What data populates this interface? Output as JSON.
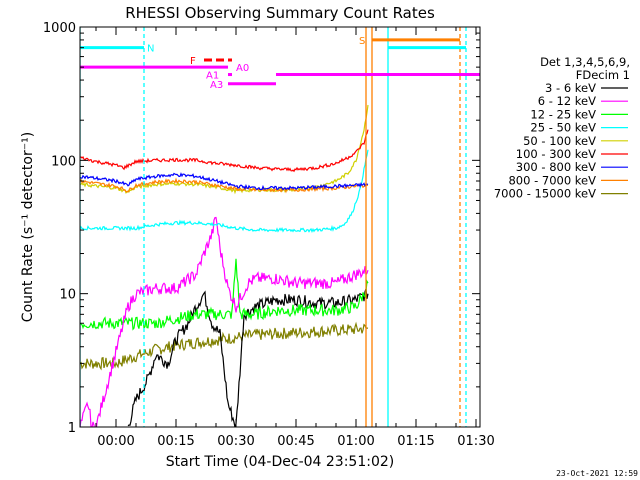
{
  "chart_data": {
    "type": "line",
    "title": "RHESSI Observing Summary Count Rates",
    "xlabel": "Start Time (04-Dec-04 23:51:02)",
    "ylabel": "Count Rate (s⁻¹ detector⁻¹)",
    "yscale": "log",
    "ylim": [
      1,
      1000
    ],
    "xlim_minutes": [
      -9,
      91
    ],
    "x_tick_labels": [
      "00:00",
      "00:15",
      "00:30",
      "00:45",
      "01:00",
      "01:15",
      "01:30"
    ],
    "x_tick_minutes": [
      0,
      15,
      30,
      45,
      60,
      75,
      90
    ],
    "y_tick_labels": [
      "1",
      "10",
      "100",
      "1000"
    ],
    "y_tick_values": [
      1,
      10,
      100,
      1000
    ],
    "legend": {
      "placement": "right",
      "header": [
        "Det 1,3,4,5,6,9,",
        "FDecim 1"
      ],
      "entries": [
        {
          "label": "3 - 6 keV",
          "color": "#000000"
        },
        {
          "label": "6 - 12 keV",
          "color": "#ff00ff"
        },
        {
          "label": "12 - 25 keV",
          "color": "#00ff00"
        },
        {
          "label": "25 - 50 keV",
          "color": "#00ffff"
        },
        {
          "label": "50 - 100 keV",
          "color": "#d0d000"
        },
        {
          "label": "100 - 300 keV",
          "color": "#ff0000"
        },
        {
          "label": "300 - 800 keV",
          "color": "#0000ff"
        },
        {
          "label": "800 - 7000 keV",
          "color": "#ff8000"
        },
        {
          "label": "7000 - 15000 keV",
          "color": "#808000"
        }
      ]
    },
    "series": [
      {
        "color": "#ff0000",
        "x": [
          -9,
          -5,
          0,
          2,
          5,
          10,
          15,
          20,
          25,
          30,
          35,
          40,
          45,
          50,
          55,
          58,
          60,
          62,
          63
        ],
        "y": [
          105,
          98,
          92,
          88,
          98,
          100,
          101,
          100,
          95,
          92,
          88,
          86,
          85,
          88,
          95,
          105,
          115,
          135,
          170
        ]
      },
      {
        "color": "#0000ff",
        "x": [
          -9,
          0,
          3,
          5,
          10,
          15,
          20,
          25,
          30,
          35,
          40,
          45,
          50,
          55,
          60,
          63
        ],
        "y": [
          76,
          70,
          65,
          72,
          76,
          78,
          76,
          70,
          64,
          62,
          62,
          62,
          63,
          64,
          65,
          66
        ]
      },
      {
        "color": "#ff8000",
        "x": [
          -9,
          0,
          3,
          5,
          10,
          15,
          20,
          25,
          30,
          35,
          40,
          45,
          50,
          55,
          60,
          63
        ],
        "y": [
          70,
          64,
          59,
          65,
          69,
          70,
          69,
          65,
          61,
          60,
          60,
          60,
          61,
          62,
          64,
          65
        ]
      },
      {
        "color": "#d0d000",
        "x": [
          -9,
          0,
          3,
          5,
          10,
          15,
          20,
          25,
          30,
          35,
          40,
          45,
          50,
          55,
          58,
          60,
          62,
          63
        ],
        "y": [
          66,
          62,
          58,
          63,
          66,
          67,
          66,
          63,
          59,
          60,
          60,
          60,
          63,
          70,
          80,
          100,
          170,
          260
        ]
      },
      {
        "color": "#00ffff",
        "x": [
          -9,
          0,
          5,
          10,
          15,
          20,
          25,
          30,
          35,
          40,
          45,
          50,
          55,
          57,
          59,
          61,
          63
        ],
        "y": [
          31,
          31,
          31,
          33,
          34,
          34,
          33,
          31,
          30,
          30,
          30,
          30,
          31,
          33,
          40,
          60,
          120
        ]
      },
      {
        "color": "#ff00ff",
        "x": [
          -9,
          -7,
          -6,
          -5,
          3,
          5,
          10,
          15,
          20,
          22,
          24,
          25,
          26,
          28,
          30,
          33,
          35,
          40,
          45,
          50,
          55,
          60,
          63
        ],
        "y": [
          1,
          1.5,
          1,
          1,
          8,
          10,
          11,
          11,
          14,
          20,
          28,
          38,
          22,
          11,
          8,
          12,
          13,
          13,
          12,
          12,
          12,
          14,
          15
        ]
      },
      {
        "color": "#00ff00",
        "x": [
          -9,
          0,
          5,
          10,
          15,
          20,
          25,
          29,
          30,
          31,
          35,
          40,
          45,
          50,
          55,
          60,
          62,
          63
        ],
        "y": [
          6,
          6,
          6,
          6,
          6.5,
          7,
          7,
          7,
          18,
          7,
          7,
          7.5,
          7.5,
          7.5,
          7.5,
          8,
          10,
          12
        ]
      },
      {
        "color": "#000000",
        "x": [
          3,
          5,
          8,
          10,
          13,
          15,
          18,
          20,
          22,
          24,
          26,
          28,
          30,
          32,
          35,
          40,
          45,
          50,
          55,
          60,
          63
        ],
        "y": [
          1,
          1.6,
          2.3,
          3.5,
          3,
          4.5,
          6,
          8,
          10,
          6,
          5,
          1.5,
          1,
          7,
          8,
          9,
          9,
          8.5,
          8.5,
          9,
          10
        ]
      },
      {
        "color": "#808000",
        "x": [
          -9,
          0,
          5,
          10,
          15,
          20,
          25,
          30,
          35,
          40,
          45,
          50,
          55,
          60,
          63
        ],
        "y": [
          3,
          3,
          3.4,
          3.8,
          4.1,
          4.3,
          4.5,
          4.7,
          4.9,
          5.0,
          5.1,
          5.2,
          5.3,
          5.4,
          5.5
        ]
      }
    ],
    "annotations": {
      "vertical_lines": [
        {
          "x": -9,
          "color": "#00ffff",
          "style": "solid"
        },
        {
          "x": 7,
          "color": "#00ffff",
          "style": "dashed"
        },
        {
          "x": 62.5,
          "color": "#ff8000",
          "style": "solid"
        },
        {
          "x": 64,
          "color": "#ff8000",
          "style": "solid"
        },
        {
          "x": 68,
          "color": "#00ffff",
          "style": "solid"
        },
        {
          "x": 86,
          "color": "#ff8000",
          "style": "dashed"
        },
        {
          "x": 87.5,
          "color": "#00ffff",
          "style": "dashed"
        }
      ],
      "flag_bars": [
        {
          "label": "N",
          "color": "#00ffff",
          "x0": -9,
          "x1": 7,
          "y": 700,
          "dashed": false
        },
        {
          "label": "",
          "color": "#00ffff",
          "x0": 68,
          "x1": 87.5,
          "y": 700,
          "dashed": false
        },
        {
          "label": "S",
          "color": "#ff8000",
          "x0": 64,
          "x1": 86,
          "y": 800,
          "dashed": false
        },
        {
          "label": "F",
          "color": "#ff0000",
          "x0": 22,
          "x1": 29,
          "y": 565,
          "dashed": true
        },
        {
          "label": "A0",
          "color": "#ff00ff",
          "x0": -9,
          "x1": 28,
          "y": 500,
          "dashed": false
        },
        {
          "label": "",
          "color": "#ff00ff",
          "x0": 40,
          "x1": 91,
          "y": 440,
          "dashed": false
        },
        {
          "label": "A1",
          "color": "#ff00ff",
          "x0": 28,
          "x1": 29,
          "y": 440,
          "dashed": false
        },
        {
          "label": "A3",
          "color": "#ff00ff",
          "x0": 28,
          "x1": 40,
          "y": 375,
          "dashed": false
        }
      ]
    }
  },
  "footer": {
    "date_stamp": "23-Oct-2021 12:59"
  }
}
